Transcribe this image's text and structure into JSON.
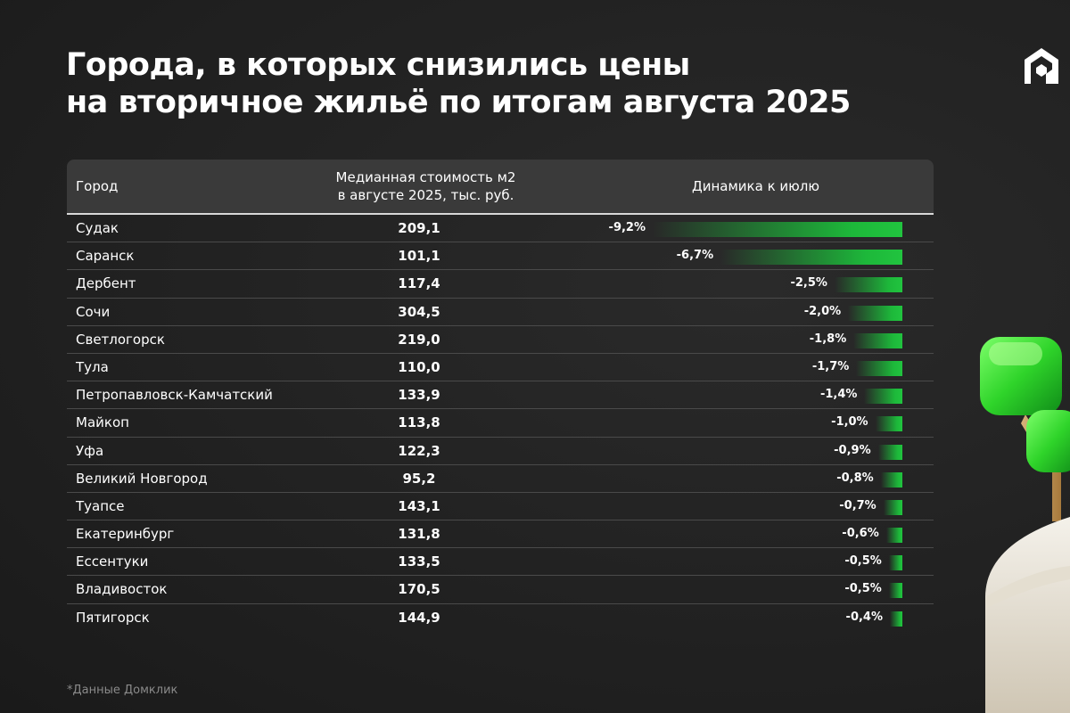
{
  "title": {
    "line1": "Города, в которых снизились цены",
    "line2": "на вторичное жильё по итогам августа 2025"
  },
  "table": {
    "headers": {
      "city": "Город",
      "price_line1": "Медианная стоимость м2",
      "price_line2": "в августе 2025, тыс. руб.",
      "dynamics": "Динамика к июлю"
    }
  },
  "chart_data": {
    "type": "bar",
    "title": "Города, в которых снизились цены на вторичное жильё по итогам августа 2025",
    "columns": [
      "Город",
      "Медианная стоимость м2 в августе 2025, тыс. руб.",
      "Динамика к июлю"
    ],
    "rows": [
      {
        "city": "Судак",
        "price": "209,1",
        "change": -9.2,
        "change_label": "-9,2%"
      },
      {
        "city": "Саранск",
        "price": "101,1",
        "change": -6.7,
        "change_label": "-6,7%"
      },
      {
        "city": "Дербент",
        "price": "117,4",
        "change": -2.5,
        "change_label": "-2,5%"
      },
      {
        "city": "Сочи",
        "price": "304,5",
        "change": -2.0,
        "change_label": "-2,0%"
      },
      {
        "city": "Светлогорск",
        "price": "219,0",
        "change": -1.8,
        "change_label": "-1,8%"
      },
      {
        "city": "Тула",
        "price": "110,0",
        "change": -1.7,
        "change_label": "-1,7%"
      },
      {
        "city": "Петропавловск-Камчатский",
        "price": "133,9",
        "change": -1.4,
        "change_label": "-1,4%"
      },
      {
        "city": "Майкоп",
        "price": "113,8",
        "change": -1.0,
        "change_label": "-1,0%"
      },
      {
        "city": "Уфа",
        "price": "122,3",
        "change": -0.9,
        "change_label": "-0,9%"
      },
      {
        "city": "Великий Новгород",
        "price": "95,2",
        "change": -0.8,
        "change_label": "-0,8%"
      },
      {
        "city": "Туапсе",
        "price": "143,1",
        "change": -0.7,
        "change_label": "-0,7%"
      },
      {
        "city": "Екатеринбург",
        "price": "131,8",
        "change": -0.6,
        "change_label": "-0,6%"
      },
      {
        "city": "Ессентуки",
        "price": "133,5",
        "change": -0.5,
        "change_label": "-0,5%"
      },
      {
        "city": "Владивосток",
        "price": "170,5",
        "change": -0.5,
        "change_label": "-0,5%"
      },
      {
        "city": "Пятигорск",
        "price": "144,9",
        "change": -0.4,
        "change_label": "-0,4%"
      }
    ],
    "bar_color": "#21c43f"
  },
  "footnote": "*Данные Домклик",
  "colors": {
    "background": "#232323",
    "header_bg": "#3a3a3a",
    "accent_green": "#21c43f"
  },
  "logo_icon": "domclick-house-icon"
}
